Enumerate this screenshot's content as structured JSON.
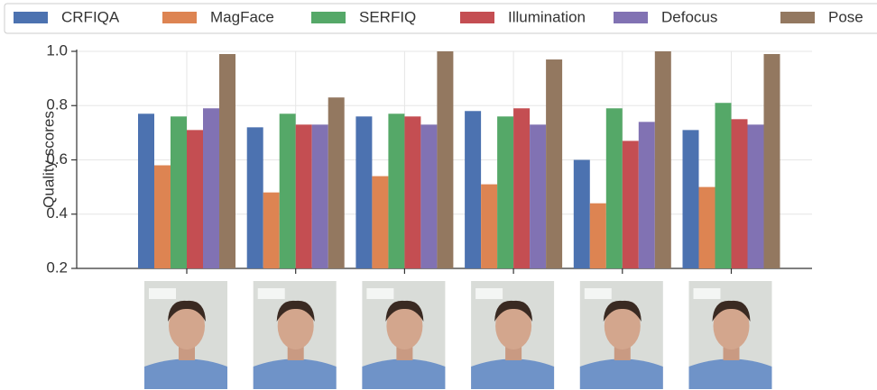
{
  "chart_data": {
    "type": "bar",
    "ylabel": "Quality scores",
    "categories": [
      null,
      null,
      null,
      null,
      null,
      null
    ],
    "series": [
      {
        "name": "CRFIQA",
        "color": "#4c72b0",
        "values": [
          0.77,
          0.72,
          0.76,
          0.78,
          0.6,
          0.71
        ]
      },
      {
        "name": "MagFace",
        "color": "#dd8452",
        "values": [
          0.58,
          0.48,
          0.54,
          0.51,
          0.44,
          0.5
        ]
      },
      {
        "name": "SERFIQ",
        "color": "#55a868",
        "values": [
          0.76,
          0.77,
          0.77,
          0.76,
          0.79,
          0.81
        ]
      },
      {
        "name": "Illumination",
        "color": "#c44e52",
        "values": [
          0.71,
          0.73,
          0.76,
          0.79,
          0.67,
          0.75
        ]
      },
      {
        "name": "Defocus",
        "color": "#8172b3",
        "values": [
          0.79,
          0.73,
          0.73,
          0.73,
          0.74,
          0.73
        ]
      },
      {
        "name": "Pose",
        "color": "#937860",
        "values": [
          0.99,
          0.83,
          1.0,
          0.97,
          1.0,
          0.99
        ]
      }
    ],
    "ylim": [
      0.2,
      1.0
    ],
    "yticks": [
      0.2,
      0.4,
      0.6,
      0.8,
      {
        "value": 1.0,
        "label": "1.0"
      }
    ],
    "grid": true,
    "legend": "top"
  }
}
